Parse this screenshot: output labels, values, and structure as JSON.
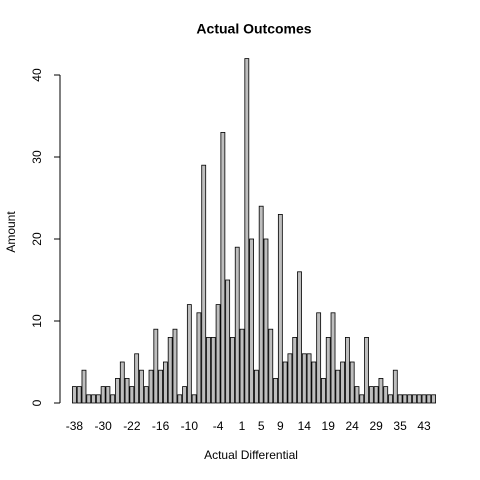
{
  "chart_data": {
    "type": "bar",
    "title": "Actual Outcomes",
    "x_label": "Actual Differential",
    "y_label": "Amount",
    "categories": [
      "-38",
      null,
      null,
      null,
      null,
      null,
      "-30",
      null,
      null,
      null,
      null,
      null,
      "-22",
      null,
      null,
      null,
      null,
      null,
      "-16",
      null,
      null,
      null,
      null,
      null,
      "-10",
      null,
      null,
      null,
      null,
      null,
      "-4",
      null,
      null,
      null,
      null,
      "1",
      null,
      null,
      null,
      "5",
      null,
      null,
      null,
      "9",
      null,
      null,
      null,
      null,
      "14",
      null,
      null,
      null,
      null,
      "19",
      null,
      null,
      null,
      null,
      "24",
      null,
      null,
      null,
      null,
      "29",
      null,
      null,
      null,
      null,
      "35",
      null,
      null,
      null,
      null,
      "43",
      null,
      null
    ],
    "values": [
      2,
      2,
      4,
      1,
      1,
      1,
      2,
      2,
      1,
      3,
      5,
      3,
      2,
      6,
      4,
      2,
      4,
      9,
      4,
      5,
      8,
      9,
      1,
      2,
      12,
      1,
      11,
      29,
      8,
      8,
      12,
      33,
      15,
      8,
      19,
      9,
      42,
      20,
      4,
      24,
      20,
      9,
      3,
      23,
      5,
      6,
      8,
      16,
      6,
      6,
      5,
      11,
      3,
      8,
      11,
      4,
      5,
      8,
      5,
      2,
      1,
      8,
      2,
      2,
      3,
      2,
      1,
      4,
      1,
      1,
      1,
      1,
      1,
      1,
      1,
      1
    ],
    "color": "#bebebe",
    "ylim": [
      0,
      40
    ],
    "yticks": [
      0,
      10,
      20,
      30,
      40
    ],
    "grid": false
  }
}
